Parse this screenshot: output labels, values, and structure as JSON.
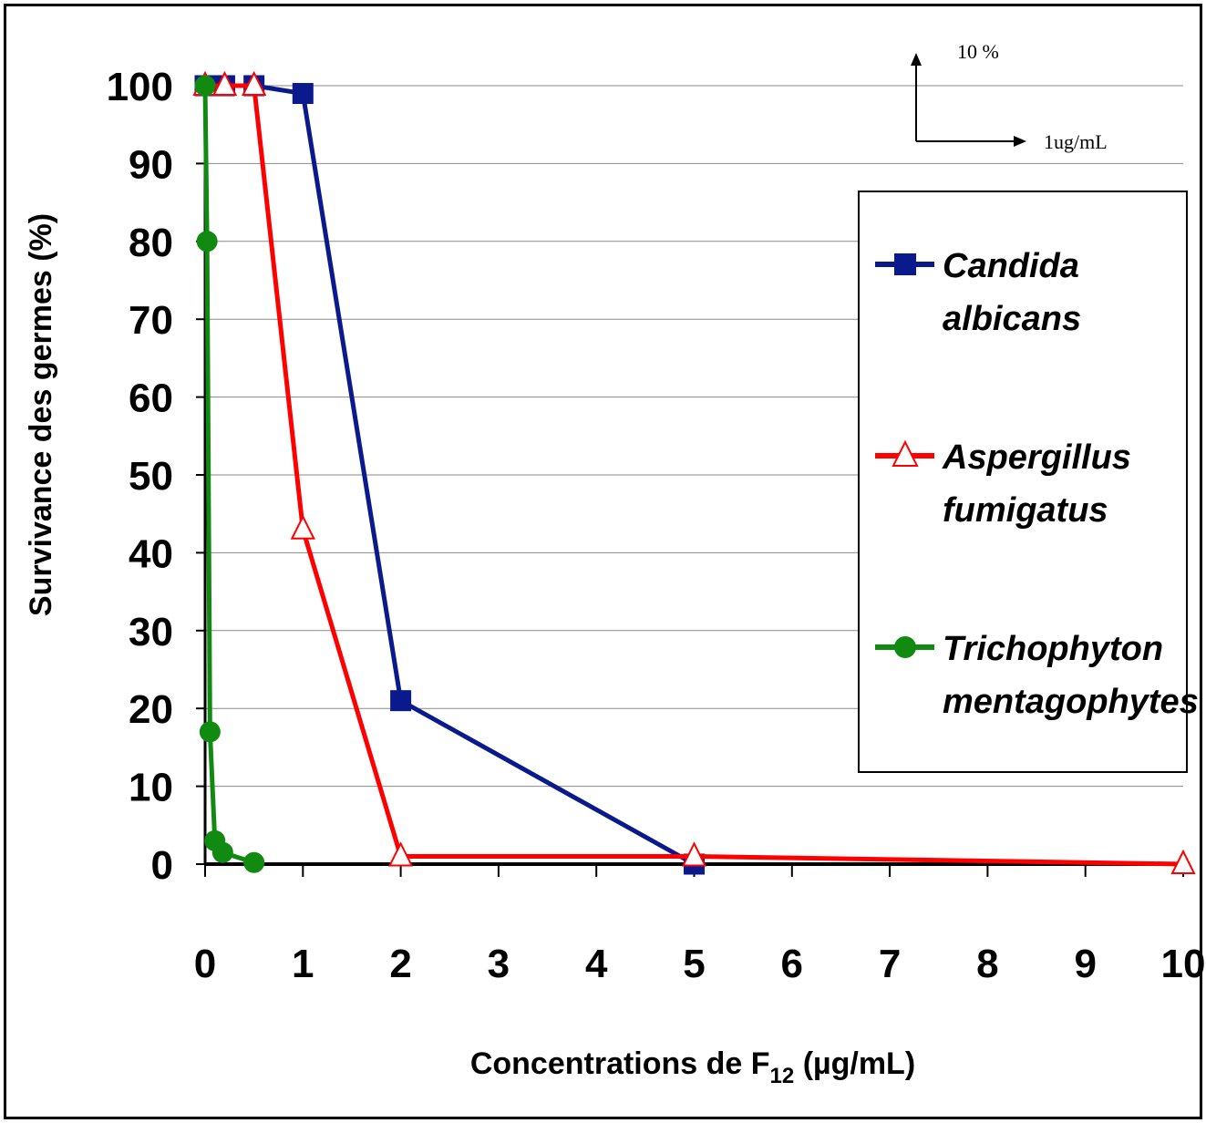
{
  "chart_data": {
    "type": "line",
    "xlabel_main": "Concentrations de F",
    "xlabel_sub": "12",
    "xlabel_unit": " (µg/mL)",
    "ylabel": "Survivance des germes (%)",
    "ylim": [
      0,
      100
    ],
    "y_ticks": [
      "0",
      "10",
      "20",
      "30",
      "40",
      "50",
      "60",
      "70",
      "80",
      "90",
      "100"
    ],
    "x_tick_labels": [
      "0",
      "1",
      "2",
      "3",
      "4",
      "5",
      "6",
      "7",
      "8",
      "9",
      "10"
    ],
    "x_label_positions": [
      0,
      1,
      2,
      3,
      4,
      5,
      6,
      7,
      8,
      9,
      10
    ],
    "grid": true,
    "legend_placement": "right",
    "series": [
      {
        "name_line1": "Candida",
        "name_line2": "albicans",
        "color": "#0a1a8c",
        "marker": "square",
        "x": [
          0,
          0.2,
          0.5,
          1,
          2,
          5
        ],
        "y": [
          100,
          100,
          100,
          99,
          21,
          0
        ]
      },
      {
        "name_line1": "Aspergillus",
        "name_line2": "fumigatus",
        "color": "#ff0000",
        "marker": "triangle",
        "x": [
          0,
          0.2,
          0.5,
          1,
          2,
          5,
          10
        ],
        "y": [
          100,
          100,
          100,
          43,
          1,
          1,
          0
        ]
      },
      {
        "name_line1": "Trichophyton",
        "name_line2": "mentagophytes",
        "color": "#118a11",
        "marker": "circle",
        "x": [
          0,
          0.02,
          0.05,
          0.1,
          0.18,
          0.5
        ],
        "y": [
          100,
          80,
          17,
          3,
          1.5,
          0.2
        ]
      }
    ],
    "scale_indicator": {
      "y_text": "10 %",
      "x_text": "1ug/mL"
    }
  }
}
